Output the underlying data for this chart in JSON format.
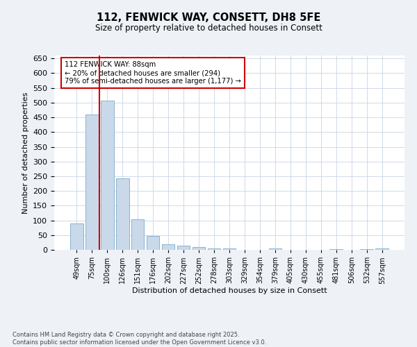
{
  "title": "112, FENWICK WAY, CONSETT, DH8 5FE",
  "subtitle": "Size of property relative to detached houses in Consett",
  "xlabel": "Distribution of detached houses by size in Consett",
  "ylabel": "Number of detached properties",
  "categories": [
    "49sqm",
    "75sqm",
    "100sqm",
    "126sqm",
    "151sqm",
    "176sqm",
    "202sqm",
    "227sqm",
    "252sqm",
    "278sqm",
    "303sqm",
    "329sqm",
    "354sqm",
    "379sqm",
    "405sqm",
    "430sqm",
    "455sqm",
    "481sqm",
    "506sqm",
    "532sqm",
    "557sqm"
  ],
  "values": [
    90,
    460,
    507,
    242,
    103,
    47,
    18,
    14,
    9,
    4,
    5,
    0,
    0,
    5,
    0,
    0,
    0,
    3,
    0,
    3,
    4
  ],
  "bar_color": "#c9d9ea",
  "bar_edge_color": "#7aaac8",
  "vline_x": 1.5,
  "vline_color": "#cc0000",
  "annotation_title": "112 FENWICK WAY: 88sqm",
  "annotation_line1": "← 20% of detached houses are smaller (294)",
  "annotation_line2": "79% of semi-detached houses are larger (1,177) →",
  "annotation_box_color": "#cc0000",
  "ylim": [
    0,
    660
  ],
  "yticks": [
    0,
    50,
    100,
    150,
    200,
    250,
    300,
    350,
    400,
    450,
    500,
    550,
    600,
    650
  ],
  "footer_line1": "Contains HM Land Registry data © Crown copyright and database right 2025.",
  "footer_line2": "Contains public sector information licensed under the Open Government Licence v3.0.",
  "bg_color": "#eef2f7",
  "plot_bg_color": "#ffffff",
  "grid_color": "#c8d4e4"
}
